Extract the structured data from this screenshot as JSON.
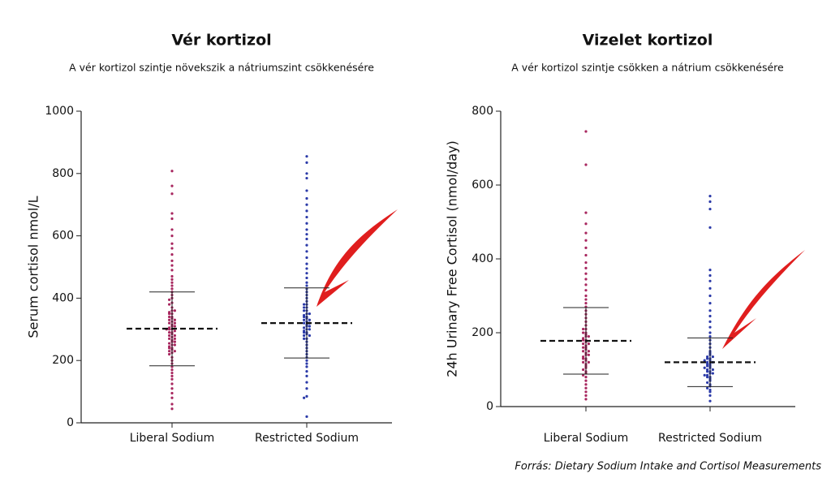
{
  "chart_data": [
    {
      "type": "beeswarm",
      "title": "Vér kortizol",
      "subtitle": "A vér kortizol szintje növekszik a nátriumszint csökkenésére",
      "y_label": "Serum cortisol nmol/L",
      "categories": [
        "Liberal Sodium",
        "Restricted Sodium"
      ],
      "colors": [
        "#a8275f",
        "#2b3aa8"
      ],
      "ylim": [
        0,
        1000
      ],
      "yticks": [
        0,
        200,
        400,
        600,
        800,
        1000
      ],
      "means": [
        302,
        320
      ],
      "sd_low": [
        183,
        208
      ],
      "sd_high": [
        420,
        433
      ],
      "values": [
        [
          808,
          760,
          735,
          672,
          655,
          620,
          600,
          575,
          560,
          540,
          520,
          505,
          490,
          470,
          460,
          450,
          440,
          430,
          420,
          410,
          400,
          395,
          385,
          380,
          370,
          360,
          355,
          350,
          340,
          335,
          330,
          325,
          320,
          315,
          310,
          305,
          300,
          300,
          295,
          290,
          285,
          280,
          275,
          270,
          265,
          260,
          255,
          250,
          245,
          240,
          235,
          230,
          225,
          220,
          210,
          200,
          190,
          180,
          170,
          160,
          150,
          140,
          125,
          110,
          95,
          80,
          60,
          45,
          310,
          290,
          320,
          280,
          330,
          270,
          300,
          260,
          340,
          250,
          350,
          240,
          360,
          230
        ],
        [
          855,
          835,
          800,
          785,
          745,
          720,
          700,
          680,
          660,
          640,
          620,
          605,
          590,
          570,
          550,
          530,
          510,
          495,
          480,
          465,
          450,
          440,
          430,
          420,
          410,
          400,
          390,
          380,
          370,
          360,
          350,
          345,
          340,
          335,
          330,
          325,
          320,
          315,
          310,
          305,
          300,
          295,
          290,
          285,
          280,
          270,
          260,
          250,
          240,
          230,
          220,
          210,
          200,
          190,
          180,
          165,
          150,
          130,
          110,
          85,
          80,
          20,
          320,
          330,
          310,
          340,
          300,
          350,
          290,
          360,
          280,
          370,
          270,
          380
        ]
      ]
    },
    {
      "type": "beeswarm",
      "title": "Vizelet kortizol",
      "subtitle": "A vér kortizol szintje csökken a nátrium csökkenésére",
      "y_label": "24h Urinary Free Cortisol (nmol/day)",
      "categories": [
        "Liberal Sodium",
        "Restricted Sodium"
      ],
      "colors": [
        "#a8275f",
        "#2b3aa8"
      ],
      "ylim": [
        0,
        800
      ],
      "yticks": [
        0,
        200,
        400,
        600,
        800
      ],
      "means": [
        178,
        120
      ],
      "sd_low": [
        88,
        54
      ],
      "sd_high": [
        268,
        186
      ],
      "values": [
        [
          745,
          655,
          525,
          495,
          470,
          450,
          430,
          410,
          390,
          375,
          360,
          345,
          330,
          315,
          300,
          290,
          280,
          270,
          260,
          250,
          240,
          230,
          220,
          210,
          200,
          195,
          190,
          185,
          180,
          175,
          170,
          165,
          160,
          155,
          150,
          145,
          140,
          135,
          130,
          125,
          120,
          115,
          110,
          105,
          100,
          95,
          90,
          85,
          80,
          70,
          60,
          50,
          40,
          30,
          20,
          180,
          170,
          160,
          150,
          140,
          190,
          200,
          130,
          120,
          210
        ],
        [
          570,
          555,
          535,
          485,
          370,
          355,
          340,
          320,
          300,
          280,
          260,
          245,
          230,
          215,
          200,
          190,
          180,
          170,
          160,
          150,
          145,
          140,
          135,
          130,
          125,
          120,
          115,
          110,
          105,
          100,
          95,
          90,
          85,
          80,
          75,
          70,
          65,
          60,
          55,
          50,
          45,
          40,
          30,
          15,
          120,
          110,
          100,
          130,
          90,
          115,
          105,
          125,
          95,
          135,
          85,
          80
        ]
      ]
    }
  ],
  "source": "Forrás: Dietary Sodium Intake and Cortisol Measurements"
}
